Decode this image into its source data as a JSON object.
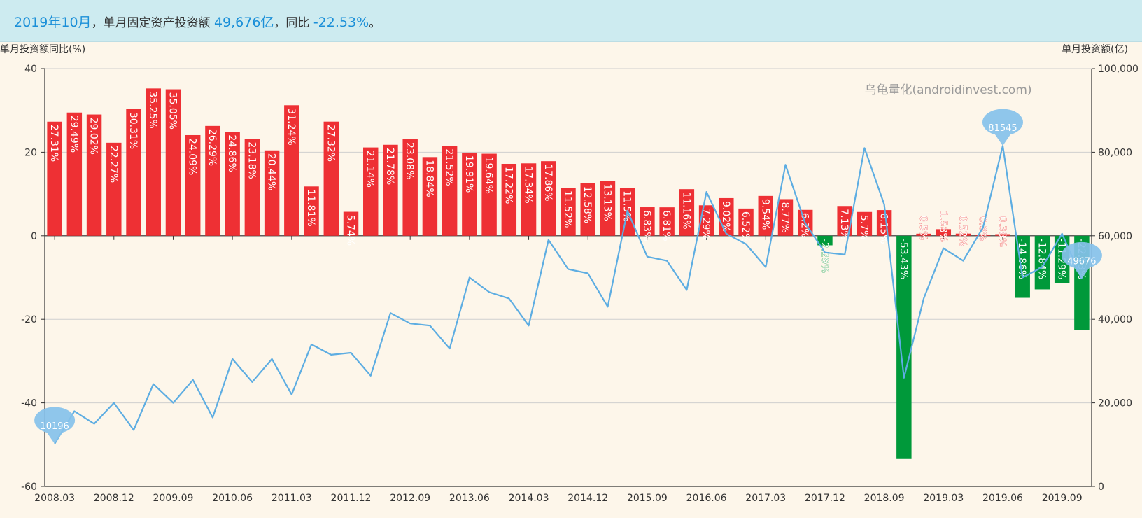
{
  "header": {
    "month": "2019年10月",
    "label": "，单月固定资产投资额 ",
    "amount": "49,676亿",
    "yoy_label": "，同比 ",
    "yoy": "-22.53%",
    "end": "。"
  },
  "axes": {
    "left_title": "单月投资额同比(%)",
    "right_title": "单月投资额(亿)"
  },
  "watermark": "乌龟量化(androidinvest.com)",
  "colors": {
    "positive": "#ee3034",
    "negative": "#00993a",
    "line": "#5dade2",
    "marker": "#86c1ea"
  },
  "chart_data": {
    "type": "bar+line",
    "left_axis": {
      "ylim": [
        -60,
        40
      ],
      "ticks": [
        "40",
        "20",
        "0",
        "-20",
        "-40",
        "-60"
      ]
    },
    "right_axis": {
      "ylim": [
        0,
        100000
      ],
      "ticks": [
        "100,000",
        "80,000",
        "60,000",
        "40,000",
        "20,000",
        "0"
      ]
    },
    "x_tick_labels": [
      "2008.03",
      "2008.12",
      "2009.09",
      "2010.06",
      "2011.03",
      "2011.12",
      "2012.09",
      "2013.06",
      "2014.03",
      "2014.12",
      "2015.09",
      "2016.06",
      "2017.03",
      "2017.12",
      "2018.09",
      "2019.03",
      "2019.06",
      "2019.09"
    ],
    "bar_series": {
      "name": "单月投资额同比(%)",
      "labels": [
        "27.31%",
        "29.49%",
        "29.02%",
        "22.27%",
        "30.31%",
        "35.25%",
        "35.05%",
        "24.09%",
        "26.29%",
        "24.86%",
        "23.18%",
        "20.44%",
        "31.24%",
        "11.81%",
        "27.32%",
        "5.74%",
        "21.14%",
        "21.78%",
        "23.08%",
        "18.84%",
        "21.52%",
        "19.91%",
        "19.64%",
        "17.22%",
        "17.34%",
        "17.86%",
        "11.52%",
        "12.58%",
        "13.13%",
        "11.5%",
        "6.83%",
        "6.81%",
        "11.16%",
        "7.29%",
        "9.02%",
        "6.52%",
        "9.54%",
        "8.77%",
        "6.2%",
        "-2.29%",
        "7.13%",
        "5.7%",
        "6.15%",
        "-53.43%",
        "0.5%",
        "1.58%",
        "0.52%",
        "0.3%",
        "0.38%",
        "-14.86%",
        "-12.84%",
        "-11.29%",
        "-22.53%"
      ],
      "values": [
        27.31,
        29.49,
        29.02,
        22.27,
        30.31,
        35.25,
        35.05,
        24.09,
        26.29,
        24.86,
        23.18,
        20.44,
        31.24,
        11.81,
        27.32,
        5.74,
        21.14,
        21.78,
        23.08,
        18.84,
        21.52,
        19.91,
        19.64,
        17.22,
        17.34,
        17.86,
        11.52,
        12.58,
        13.13,
        11.5,
        6.83,
        6.81,
        11.16,
        7.29,
        9.02,
        6.52,
        9.54,
        8.77,
        6.2,
        -2.29,
        7.13,
        5.7,
        6.15,
        -53.43,
        0.5,
        1.58,
        0.52,
        0.3,
        0.38,
        -14.86,
        -12.84,
        -11.29,
        -22.53
      ]
    },
    "line_series": {
      "name": "单月投资额(亿)",
      "values": [
        10196,
        18000,
        15000,
        20000,
        13500,
        24500,
        20000,
        25500,
        16500,
        30500,
        25000,
        30500,
        22000,
        34000,
        31500,
        32000,
        26500,
        41500,
        39000,
        38500,
        33000,
        50000,
        46500,
        45000,
        38500,
        59000,
        52000,
        51000,
        43000,
        66000,
        55000,
        54000,
        47000,
        70500,
        60500,
        58000,
        52500,
        77000,
        63000,
        56000,
        55500,
        81000,
        67500,
        26000,
        45000,
        57000,
        54000,
        62000,
        81545,
        50000,
        52500,
        60500,
        49676
      ],
      "markers": [
        {
          "label": "10196"
        },
        {
          "label": "81545"
        },
        {
          "label": "49676"
        }
      ]
    }
  }
}
